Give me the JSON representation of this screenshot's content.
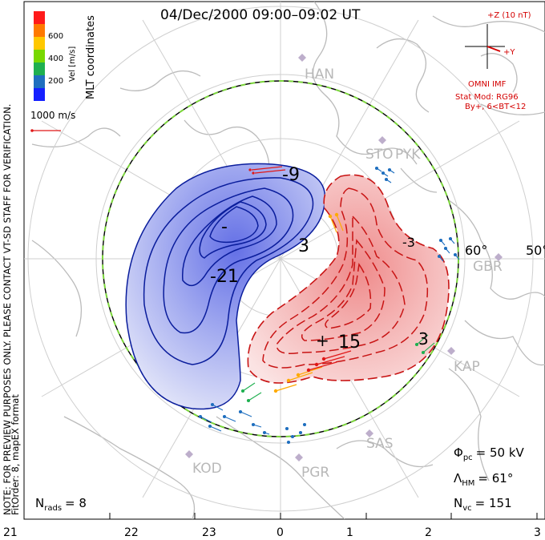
{
  "title": "04/Dec/2000 09:00–09:02 UT",
  "coords": "MLT coordinates",
  "colorbar": {
    "label": "Vel [m/s]",
    "ticks": [
      "600",
      "400",
      "200"
    ],
    "colors": [
      "#ff1a1a",
      "#ff7a00",
      "#ffc800",
      "#78d800",
      "#1fb050",
      "#1f6fbf",
      "#1520ff"
    ]
  },
  "velocity_ref": "1000 m/s",
  "imf": {
    "label": "+Z (10 nT)",
    "y_label": "+Y",
    "source": "OMNI IMF"
  },
  "model": {
    "line1": "Stat Mod: RG96",
    "line2": "By+, 6<BT<12"
  },
  "radars": [
    "HAN",
    "PYK",
    "STO",
    "GBR",
    "KAP",
    "SAS",
    "PGR",
    "KOD"
  ],
  "latitude_labels": [
    "50°",
    "60°"
  ],
  "contour_labels": [
    "-9",
    "-21",
    "-3",
    "3",
    "15",
    "3",
    "-",
    "+"
  ],
  "stats": {
    "phi_symbol": "Φ",
    "phi_sub": "pc",
    "phi_value": "= 50 kV",
    "lambda_symbol": "Λ",
    "lambda_sub": "HM",
    "lambda_value": "= 61°",
    "nvc_symbol": "N",
    "nvc_sub": "vc",
    "nvc_value": "= 151",
    "nrads_symbol": "N",
    "nrads_sub": "rads",
    "nrads_value": "= 8"
  },
  "fit_order": "FitOrder: 8, mapEX format",
  "note": "NOTE: FOR PREVIEW PURPOSES ONLY. PLEASE CONTACT VT-SD STAFF FOR VERIFICATION.",
  "mlt_ticks": [
    "21",
    "22",
    "23",
    "0",
    "1",
    "2",
    "3"
  ]
}
